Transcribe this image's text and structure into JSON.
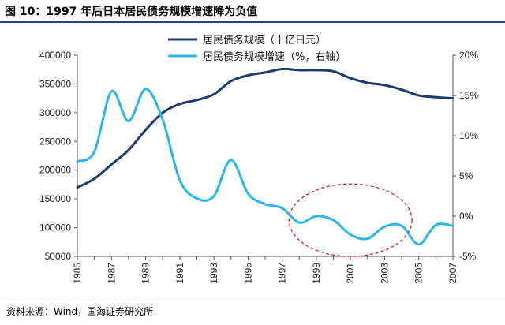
{
  "header": {
    "title": "图 10：1997 年后日本居民债务规模增速降为负值"
  },
  "footer": {
    "source": "资料来源：Wind，国海证券研究所"
  },
  "chart_data": {
    "type": "line",
    "title": "图 10：1997 年后日本居民债务规模增速降为负值",
    "x": [
      1985,
      1986,
      1987,
      1988,
      1989,
      1990,
      1991,
      1992,
      1993,
      1994,
      1995,
      1996,
      1997,
      1998,
      1999,
      2000,
      2001,
      2002,
      2003,
      2004,
      2005,
      2006,
      2007
    ],
    "x_tick_labels": [
      "1985",
      "1987",
      "1989",
      "1991",
      "1993",
      "1995",
      "1997",
      "1999",
      "2001",
      "2003",
      "2005",
      "2007"
    ],
    "y_left": {
      "ylim": [
        50000,
        400000
      ],
      "ticks": [
        50000,
        100000,
        150000,
        200000,
        250000,
        300000,
        350000,
        400000
      ],
      "tick_labels": [
        "50000",
        "100000",
        "150000",
        "200000",
        "250000",
        "300000",
        "350000",
        "400000"
      ]
    },
    "y_right": {
      "ylim": [
        -5,
        20
      ],
      "ticks": [
        -5,
        0,
        5,
        10,
        15,
        20
      ],
      "tick_labels": [
        "-5%",
        "0%",
        "5%",
        "10%",
        "15%",
        "20%"
      ]
    },
    "legend_position": "top",
    "series": [
      {
        "name": "居民债务规模（十亿日元）",
        "axis": "left",
        "color": "#1f3a6e",
        "points": [
          [
            1985,
            170000
          ],
          [
            1986,
            185000
          ],
          [
            1987,
            210000
          ],
          [
            1988,
            235000
          ],
          [
            1989,
            270000
          ],
          [
            1990,
            300000
          ],
          [
            1991,
            315000
          ],
          [
            1992,
            322000
          ],
          [
            1993,
            332000
          ],
          [
            1994,
            355000
          ],
          [
            1995,
            365000
          ],
          [
            1996,
            370000
          ],
          [
            1997,
            376000
          ],
          [
            1998,
            374000
          ],
          [
            1999,
            374000
          ],
          [
            2000,
            372000
          ],
          [
            2001,
            360000
          ],
          [
            2002,
            352000
          ],
          [
            2003,
            348000
          ],
          [
            2004,
            340000
          ],
          [
            2005,
            330000
          ],
          [
            2006,
            327000
          ],
          [
            2007,
            325000
          ]
        ]
      },
      {
        "name": "居民债务规模增速（%，右轴）",
        "axis": "right",
        "color": "#29b6e8",
        "points": [
          [
            1985,
            6.8
          ],
          [
            1986,
            8.0
          ],
          [
            1987,
            15.5
          ],
          [
            1988,
            11.8
          ],
          [
            1989,
            15.8
          ],
          [
            1990,
            12.0
          ],
          [
            1991,
            4.5
          ],
          [
            1992,
            2.2
          ],
          [
            1993,
            2.5
          ],
          [
            1994,
            7.0
          ],
          [
            1995,
            2.8
          ],
          [
            1996,
            1.5
          ],
          [
            1997,
            1.0
          ],
          [
            1998,
            -0.8
          ],
          [
            1999,
            0.0
          ],
          [
            2000,
            -0.5
          ],
          [
            2001,
            -2.3
          ],
          [
            2002,
            -2.8
          ],
          [
            2003,
            -1.3
          ],
          [
            2004,
            -1.2
          ],
          [
            2005,
            -3.5
          ],
          [
            2006,
            -1.1
          ],
          [
            2007,
            -1.2
          ]
        ]
      }
    ],
    "annotations": [
      {
        "type": "ellipse",
        "style": "dashed",
        "color": "#e02020",
        "x_range": [
          1997.4,
          2004.6
        ],
        "y_right_range": [
          -5,
          4
        ]
      }
    ]
  }
}
